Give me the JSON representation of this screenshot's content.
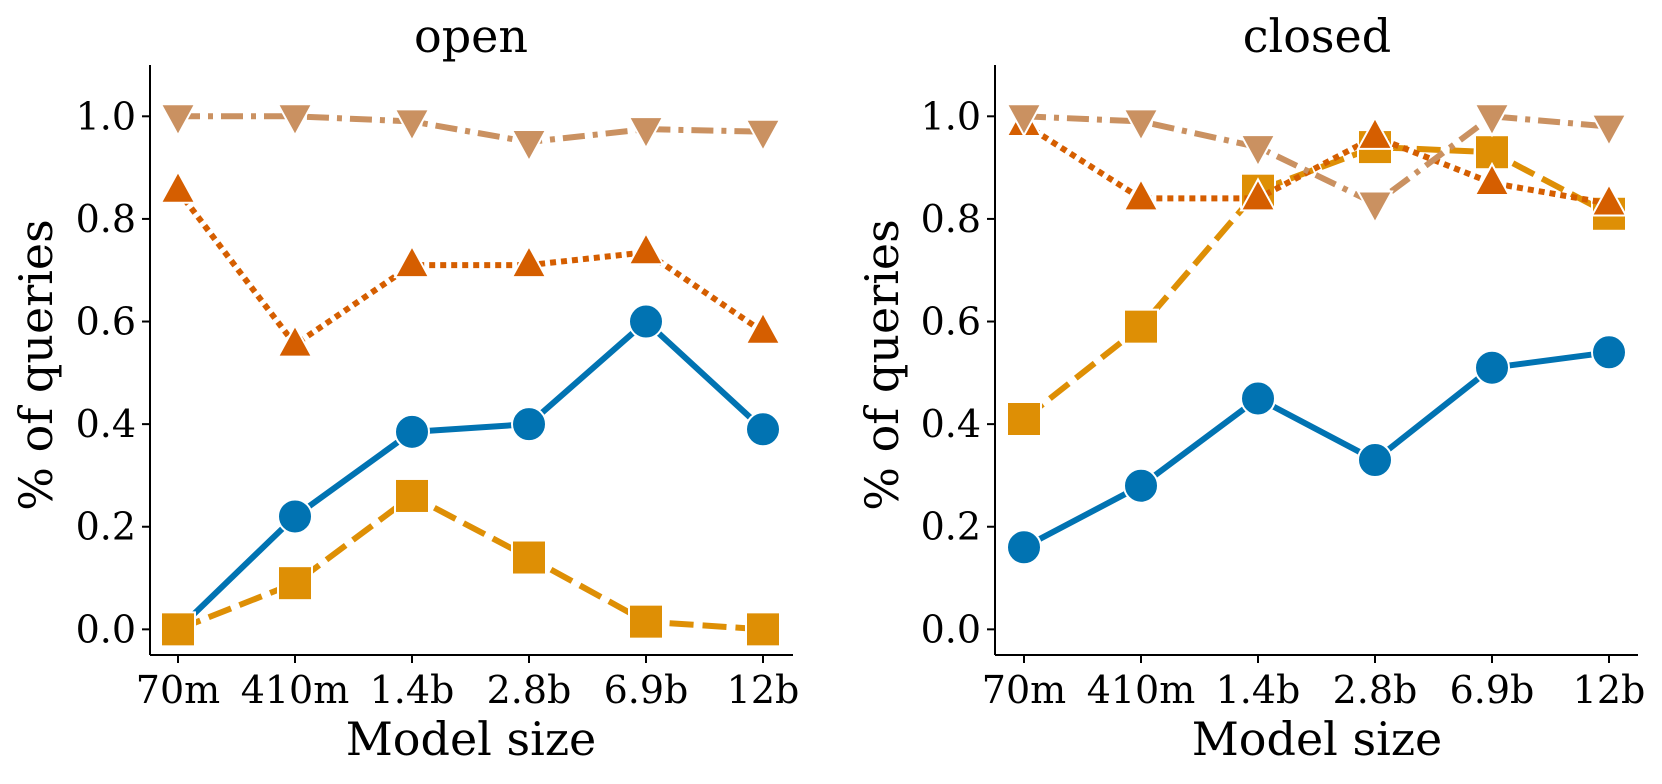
{
  "chart_data": [
    {
      "type": "line",
      "title": "open",
      "xlabel": "Model size",
      "ylabel": "% of queries",
      "categories": [
        "70m",
        "410m",
        "1.4b",
        "2.8b",
        "6.9b",
        "12b"
      ],
      "ylim": [
        -0.05,
        1.1
      ],
      "yticks": [
        "0.0",
        "0.2",
        "0.4",
        "0.6",
        "0.8",
        "1.0"
      ],
      "series": [
        {
          "name": "circle",
          "marker": "circle",
          "color": "#0173b2",
          "dash": "solid",
          "values": [
            0.0,
            0.22,
            0.385,
            0.4,
            0.6,
            0.39
          ]
        },
        {
          "name": "square",
          "marker": "square",
          "color": "#de8f05",
          "dash": "dashed",
          "values": [
            0.0,
            0.09,
            0.26,
            0.14,
            0.015,
            0.0
          ]
        },
        {
          "name": "triangle-up",
          "marker": "triangle-up",
          "color": "#d55e00",
          "dash": "dotted",
          "values": [
            0.855,
            0.555,
            0.71,
            0.71,
            0.735,
            0.58
          ]
        },
        {
          "name": "triangle-down",
          "marker": "triangle-down",
          "color": "#ca9161",
          "dash": "dashdot",
          "values": [
            1.0,
            1.0,
            0.99,
            0.95,
            0.975,
            0.97
          ]
        }
      ]
    },
    {
      "type": "line",
      "title": "closed",
      "xlabel": "Model size",
      "ylabel": "% of queries",
      "categories": [
        "70m",
        "410m",
        "1.4b",
        "2.8b",
        "6.9b",
        "12b"
      ],
      "ylim": [
        -0.05,
        1.1
      ],
      "yticks": [
        "0.0",
        "0.2",
        "0.4",
        "0.6",
        "0.8",
        "1.0"
      ],
      "series": [
        {
          "name": "circle",
          "marker": "circle",
          "color": "#0173b2",
          "dash": "solid",
          "values": [
            0.16,
            0.28,
            0.45,
            0.33,
            0.51,
            0.54
          ]
        },
        {
          "name": "square",
          "marker": "square",
          "color": "#de8f05",
          "dash": "dashed",
          "values": [
            0.41,
            0.59,
            0.855,
            0.94,
            0.93,
            0.81
          ]
        },
        {
          "name": "triangle-up",
          "marker": "triangle-up",
          "color": "#d55e00",
          "dash": "dotted",
          "values": [
            0.985,
            0.84,
            0.84,
            0.96,
            0.87,
            0.83
          ]
        },
        {
          "name": "triangle-down",
          "marker": "triangle-down",
          "color": "#ca9161",
          "dash": "dashdot",
          "values": [
            1.0,
            0.99,
            0.94,
            0.83,
            1.0,
            0.98
          ]
        }
      ]
    }
  ]
}
